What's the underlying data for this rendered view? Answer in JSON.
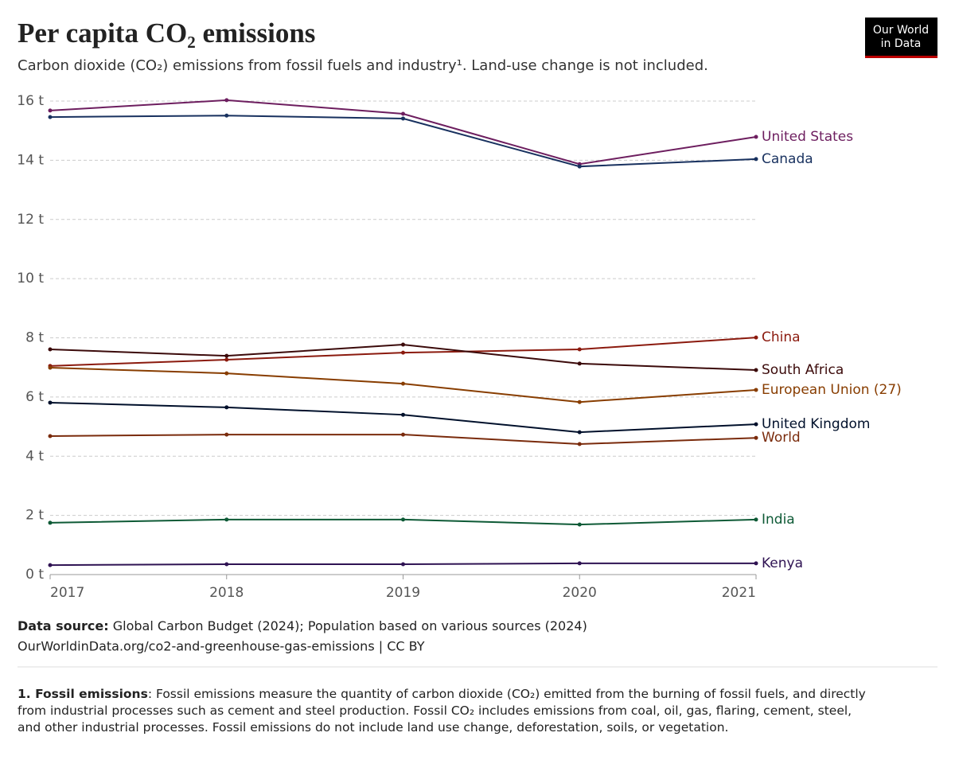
{
  "chart_data": {
    "type": "line",
    "title": "Per capita CO₂ emissions",
    "subtitle": "Carbon dioxide (CO₂) emissions from fossil fuels and industry¹. Land-use change is not included.",
    "logo": [
      "Our World",
      "in Data"
    ],
    "x": [
      2017,
      2018,
      2019,
      2020,
      2021
    ],
    "xlim": [
      2017,
      2021
    ],
    "xticks": [
      2017,
      2018,
      2019,
      2020,
      2021
    ],
    "ylim": [
      0,
      16
    ],
    "yticks": [
      {
        "value": 0,
        "label": "0 t"
      },
      {
        "value": 2,
        "label": "2 t"
      },
      {
        "value": 4,
        "label": "4 t"
      },
      {
        "value": 6,
        "label": "6 t"
      },
      {
        "value": 8,
        "label": "8 t"
      },
      {
        "value": 10,
        "label": "10 t"
      },
      {
        "value": 12,
        "label": "12 t"
      },
      {
        "value": 14,
        "label": "14 t"
      },
      {
        "value": 16,
        "label": "16 t"
      }
    ],
    "grid": true,
    "series": [
      {
        "name": "United States",
        "color": "#6d1e5f",
        "values": [
          15.68,
          16.03,
          15.57,
          13.87,
          14.79
        ]
      },
      {
        "name": "Canada",
        "color": "#18315f",
        "values": [
          15.46,
          15.51,
          15.41,
          13.79,
          14.04
        ]
      },
      {
        "name": "China",
        "color": "#8b1a0e",
        "values": [
          7.05,
          7.26,
          7.5,
          7.61,
          8.01
        ]
      },
      {
        "name": "South Africa",
        "color": "#3b0a0a",
        "values": [
          7.61,
          7.39,
          7.77,
          7.13,
          6.91
        ]
      },
      {
        "name": "European Union (27)",
        "color": "#883d00",
        "values": [
          6.99,
          6.8,
          6.45,
          5.83,
          6.24
        ]
      },
      {
        "name": "United Kingdom",
        "color": "#00102b",
        "values": [
          5.81,
          5.65,
          5.4,
          4.81,
          5.08
        ]
      },
      {
        "name": "World",
        "color": "#7a2b0c",
        "values": [
          4.68,
          4.73,
          4.73,
          4.41,
          4.62
        ]
      },
      {
        "name": "India",
        "color": "#0e5a36",
        "values": [
          1.75,
          1.86,
          1.86,
          1.69,
          1.86
        ]
      },
      {
        "name": "Kenya",
        "color": "#2f1353",
        "values": [
          0.32,
          0.35,
          0.35,
          0.38,
          0.38
        ]
      }
    ],
    "source_label": "Data source:",
    "source_text": "Global Carbon Budget (2024); Population based on various sources (2024)",
    "url": "OurWorldinData.org/co2-and-greenhouse-gas-emissions | CC BY",
    "footnote_label": "1. Fossil emissions",
    "footnote_text": ": Fossil emissions measure the quantity of carbon dioxide (CO₂) emitted from the burning of fossil fuels, and directly from industrial processes such as cement and steel production. Fossil CO₂ includes emissions from coal, oil, gas, flaring, cement, steel, and other industrial processes. Fossil emissions do not include land use change, deforestation, soils, or vegetation."
  }
}
